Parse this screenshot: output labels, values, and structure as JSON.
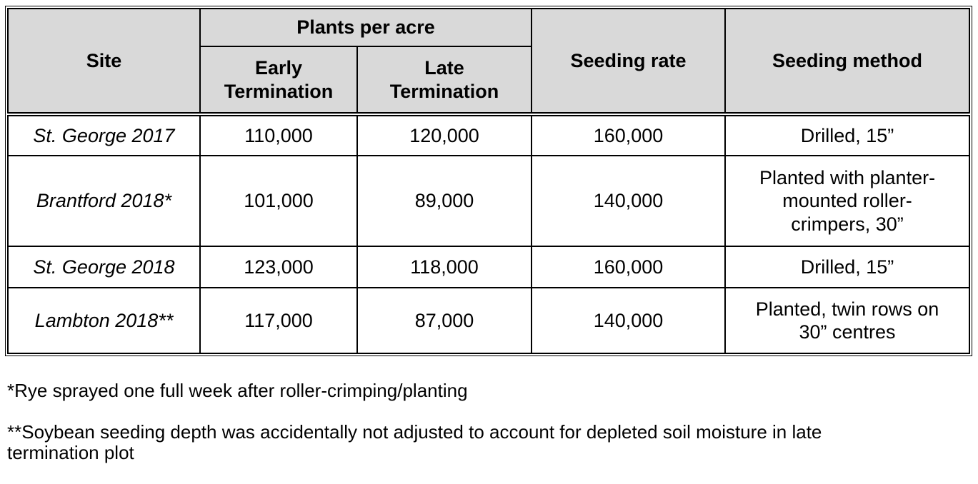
{
  "colors": {
    "header_bg": "#d9d9d9",
    "border": "#000000",
    "text": "#000000",
    "page_bg": "#ffffff"
  },
  "table": {
    "header": {
      "site": "Site",
      "plants_per_acre": "Plants per acre",
      "early_termination": "Early\nTermination",
      "late_termination": "Late\nTermination",
      "seeding_rate": "Seeding rate",
      "seeding_method": "Seeding method"
    },
    "rows": [
      {
        "site": "St. George 2017",
        "early_termination": "110,000",
        "late_termination": "120,000",
        "seeding_rate": "160,000",
        "seeding_method": "Drilled, 15”"
      },
      {
        "site": "Brantford 2018*",
        "early_termination": "101,000",
        "late_termination": "89,000",
        "seeding_rate": "140,000",
        "seeding_method": "Planted with planter-\nmounted roller-\ncrimpers, 30”"
      },
      {
        "site": "St. George 2018",
        "early_termination": "123,000",
        "late_termination": "118,000",
        "seeding_rate": "160,000",
        "seeding_method": "Drilled, 15”"
      },
      {
        "site": "Lambton 2018**",
        "early_termination": "117,000",
        "late_termination": "87,000",
        "seeding_rate": "140,000",
        "seeding_method": "Planted, twin rows on\n30” centres"
      }
    ]
  },
  "footnotes": [
    "*Rye sprayed one full week after roller-crimping/planting",
    "**Soybean seeding depth was accidentally not adjusted to account for depleted soil moisture in late\ntermination plot"
  ],
  "chart_data": {
    "type": "table",
    "categories": [
      "St. George 2017",
      "Brantford 2018*",
      "St. George 2018",
      "Lambton 2018**"
    ],
    "series": [
      {
        "name": "Plants per acre — Early Termination",
        "values": [
          110000,
          101000,
          123000,
          117000
        ]
      },
      {
        "name": "Plants per acre — Late Termination",
        "values": [
          120000,
          89000,
          118000,
          87000
        ]
      },
      {
        "name": "Seeding rate",
        "values": [
          160000,
          140000,
          160000,
          140000
        ]
      }
    ],
    "seeding_methods": [
      "Drilled, 15”",
      "Planted with planter-mounted roller-crimpers, 30”",
      "Drilled, 15”",
      "Planted, twin rows on 30” centres"
    ]
  }
}
